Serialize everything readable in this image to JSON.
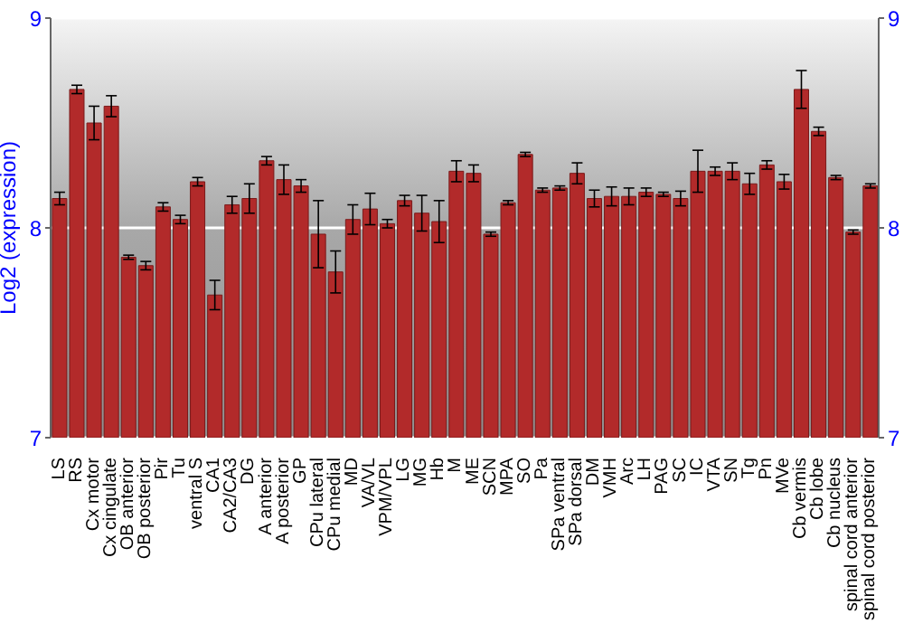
{
  "chart_data": {
    "type": "bar",
    "ylabel": "Log2 (expression)",
    "categories": [
      "LS",
      "RS",
      "Cx motor",
      "Cx cingulate",
      "OB anterior",
      "OB posterior",
      "Pir",
      "Tu",
      "ventral S",
      "CA1",
      "CA2/CA3",
      "DG",
      "A anterior",
      "A posterior",
      "GP",
      "CPu lateral",
      "CPu medial",
      "MD",
      "VA/VL",
      "VPM/VPL",
      "LG",
      "MG",
      "Hb",
      "M",
      "ME",
      "SCN",
      "MPA",
      "SO",
      "Pa",
      "SPa ventral",
      "SPa dorsal",
      "DM",
      "VMH",
      "Arc",
      "LH",
      "PAG",
      "SC",
      "IC",
      "VTA",
      "SN",
      "Tg",
      "Pn",
      "MVe",
      "Cb vermis",
      "Cb lobe",
      "Cb nucleus",
      "spinal cord anterior",
      "spinal cord posterior"
    ],
    "values": [
      8.14,
      8.66,
      8.5,
      8.58,
      7.86,
      7.82,
      8.1,
      8.04,
      8.22,
      7.68,
      8.11,
      8.14,
      8.32,
      8.23,
      8.2,
      7.97,
      7.79,
      8.04,
      8.09,
      8.02,
      8.13,
      8.07,
      8.03,
      8.27,
      8.26,
      7.97,
      8.12,
      8.35,
      8.18,
      8.19,
      8.26,
      8.14,
      8.15,
      8.15,
      8.17,
      8.16,
      8.14,
      8.27,
      8.27,
      8.27,
      8.21,
      8.3,
      8.22,
      8.66,
      8.46,
      8.24,
      7.98,
      8.2
    ],
    "errors": [
      0.03,
      0.02,
      0.08,
      0.05,
      0.01,
      0.02,
      0.02,
      0.02,
      0.02,
      0.07,
      0.04,
      0.07,
      0.02,
      0.07,
      0.03,
      0.16,
      0.1,
      0.07,
      0.075,
      0.02,
      0.025,
      0.085,
      0.1,
      0.05,
      0.04,
      0.01,
      0.01,
      0.01,
      0.01,
      0.01,
      0.05,
      0.04,
      0.045,
      0.04,
      0.02,
      0.01,
      0.035,
      0.1,
      0.02,
      0.04,
      0.05,
      0.02,
      0.035,
      0.09,
      0.02,
      0.01,
      0.01,
      0.01
    ],
    "color": "#b22a2a",
    "ylim": [
      7,
      9
    ],
    "yticks": [
      7,
      8,
      9
    ],
    "y2lim": [
      7,
      9
    ],
    "y2ticks": [
      7,
      8,
      9
    ],
    "grid": "y"
  }
}
